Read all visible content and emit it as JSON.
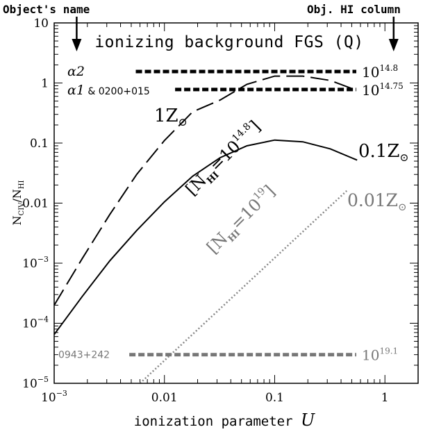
{
  "chart_data": {
    "type": "line",
    "title": "ionizing background FGS (Q)",
    "xlabel": "ionization parameter U",
    "ylabel_main": "N",
    "ylabel_sub1": "CIV",
    "ylabel_sep": "/N",
    "ylabel_sub2": "HI",
    "xscale": "log",
    "yscale": "log",
    "xlim": [
      0.001,
      2.0
    ],
    "ylim": [
      1e-05,
      10
    ],
    "x_ticks": [
      {
        "value": 0.001,
        "base": "10",
        "exp": "−3"
      },
      {
        "value": 0.01,
        "text": "0.01"
      },
      {
        "value": 0.1,
        "text": "0.1"
      },
      {
        "value": 1,
        "text": "1"
      }
    ],
    "y_ticks": [
      {
        "value": 10,
        "text": "10"
      },
      {
        "value": 1,
        "text": "1"
      },
      {
        "value": 0.1,
        "text": "0.1"
      },
      {
        "value": 0.01,
        "text": "0.01"
      },
      {
        "value": 0.001,
        "base": "10",
        "exp": "−3"
      },
      {
        "value": 0.0001,
        "base": "10",
        "exp": "−4"
      },
      {
        "value": 1e-05,
        "base": "10",
        "exp": "−5"
      }
    ],
    "top_annotations": {
      "left": "Object's name",
      "left_arrow_x": 0.0016,
      "right": "Obj. HI column",
      "right_arrow_x": 1.2
    },
    "series": [
      {
        "label": "1Z",
        "label_sub": "⊙",
        "style": "dashed",
        "color": "#000000",
        "x": [
          0.001,
          0.0018,
          0.0032,
          0.0056,
          0.01,
          0.018,
          0.032,
          0.056,
          0.1,
          0.18,
          0.32,
          0.56
        ],
        "y": [
          0.0002,
          0.0012,
          0.0065,
          0.03,
          0.11,
          0.33,
          0.52,
          0.95,
          1.3,
          1.3,
          1.1,
          0.75
        ]
      },
      {
        "label": "0.1Z",
        "label_sub": "⊙",
        "style": "solid",
        "color": "#000000",
        "x": [
          0.001,
          0.0018,
          0.0032,
          0.0056,
          0.01,
          0.018,
          0.032,
          0.056,
          0.1,
          0.18,
          0.32,
          0.56
        ],
        "y": [
          6.5e-05,
          0.00028,
          0.0011,
          0.0035,
          0.0105,
          0.028,
          0.057,
          0.09,
          0.112,
          0.105,
          0.08,
          0.052
        ]
      },
      {
        "label": "0.01Z",
        "label_sub": "⊙",
        "style": "dotted",
        "color": "#888888",
        "x": [
          0.006,
          0.45
        ],
        "y": [
          1e-05,
          0.016
        ]
      }
    ],
    "curve_labels": [
      {
        "base": "[N",
        "sub": "HI",
        "mid": "=10",
        "sup": "14.8",
        "end": "]",
        "color": "#000000",
        "x": 0.018,
        "y": 0.013,
        "angle": -45
      },
      {
        "base": "[N",
        "sub": "HI",
        "mid": "=10",
        "sup": "19",
        "end": "]",
        "color": "#777777",
        "x": 0.028,
        "y": 0.0014,
        "angle": -45
      }
    ],
    "object_lines": [
      {
        "name": "α2",
        "x_from": 0.0055,
        "x_to": 0.55,
        "y": 1.55,
        "column": "10",
        "column_exp": "14.8",
        "color": "#000000"
      },
      {
        "name": "α1 & 0200+015",
        "x_from": 0.0125,
        "x_to": 0.55,
        "y": 0.78,
        "column": "10",
        "column_exp": "14.75",
        "color": "#000000"
      },
      {
        "name": "0943+242",
        "x_from": 0.0048,
        "x_to": 0.55,
        "y": 3e-05,
        "column": "10",
        "column_exp": "19.1",
        "color": "#777777"
      }
    ]
  }
}
